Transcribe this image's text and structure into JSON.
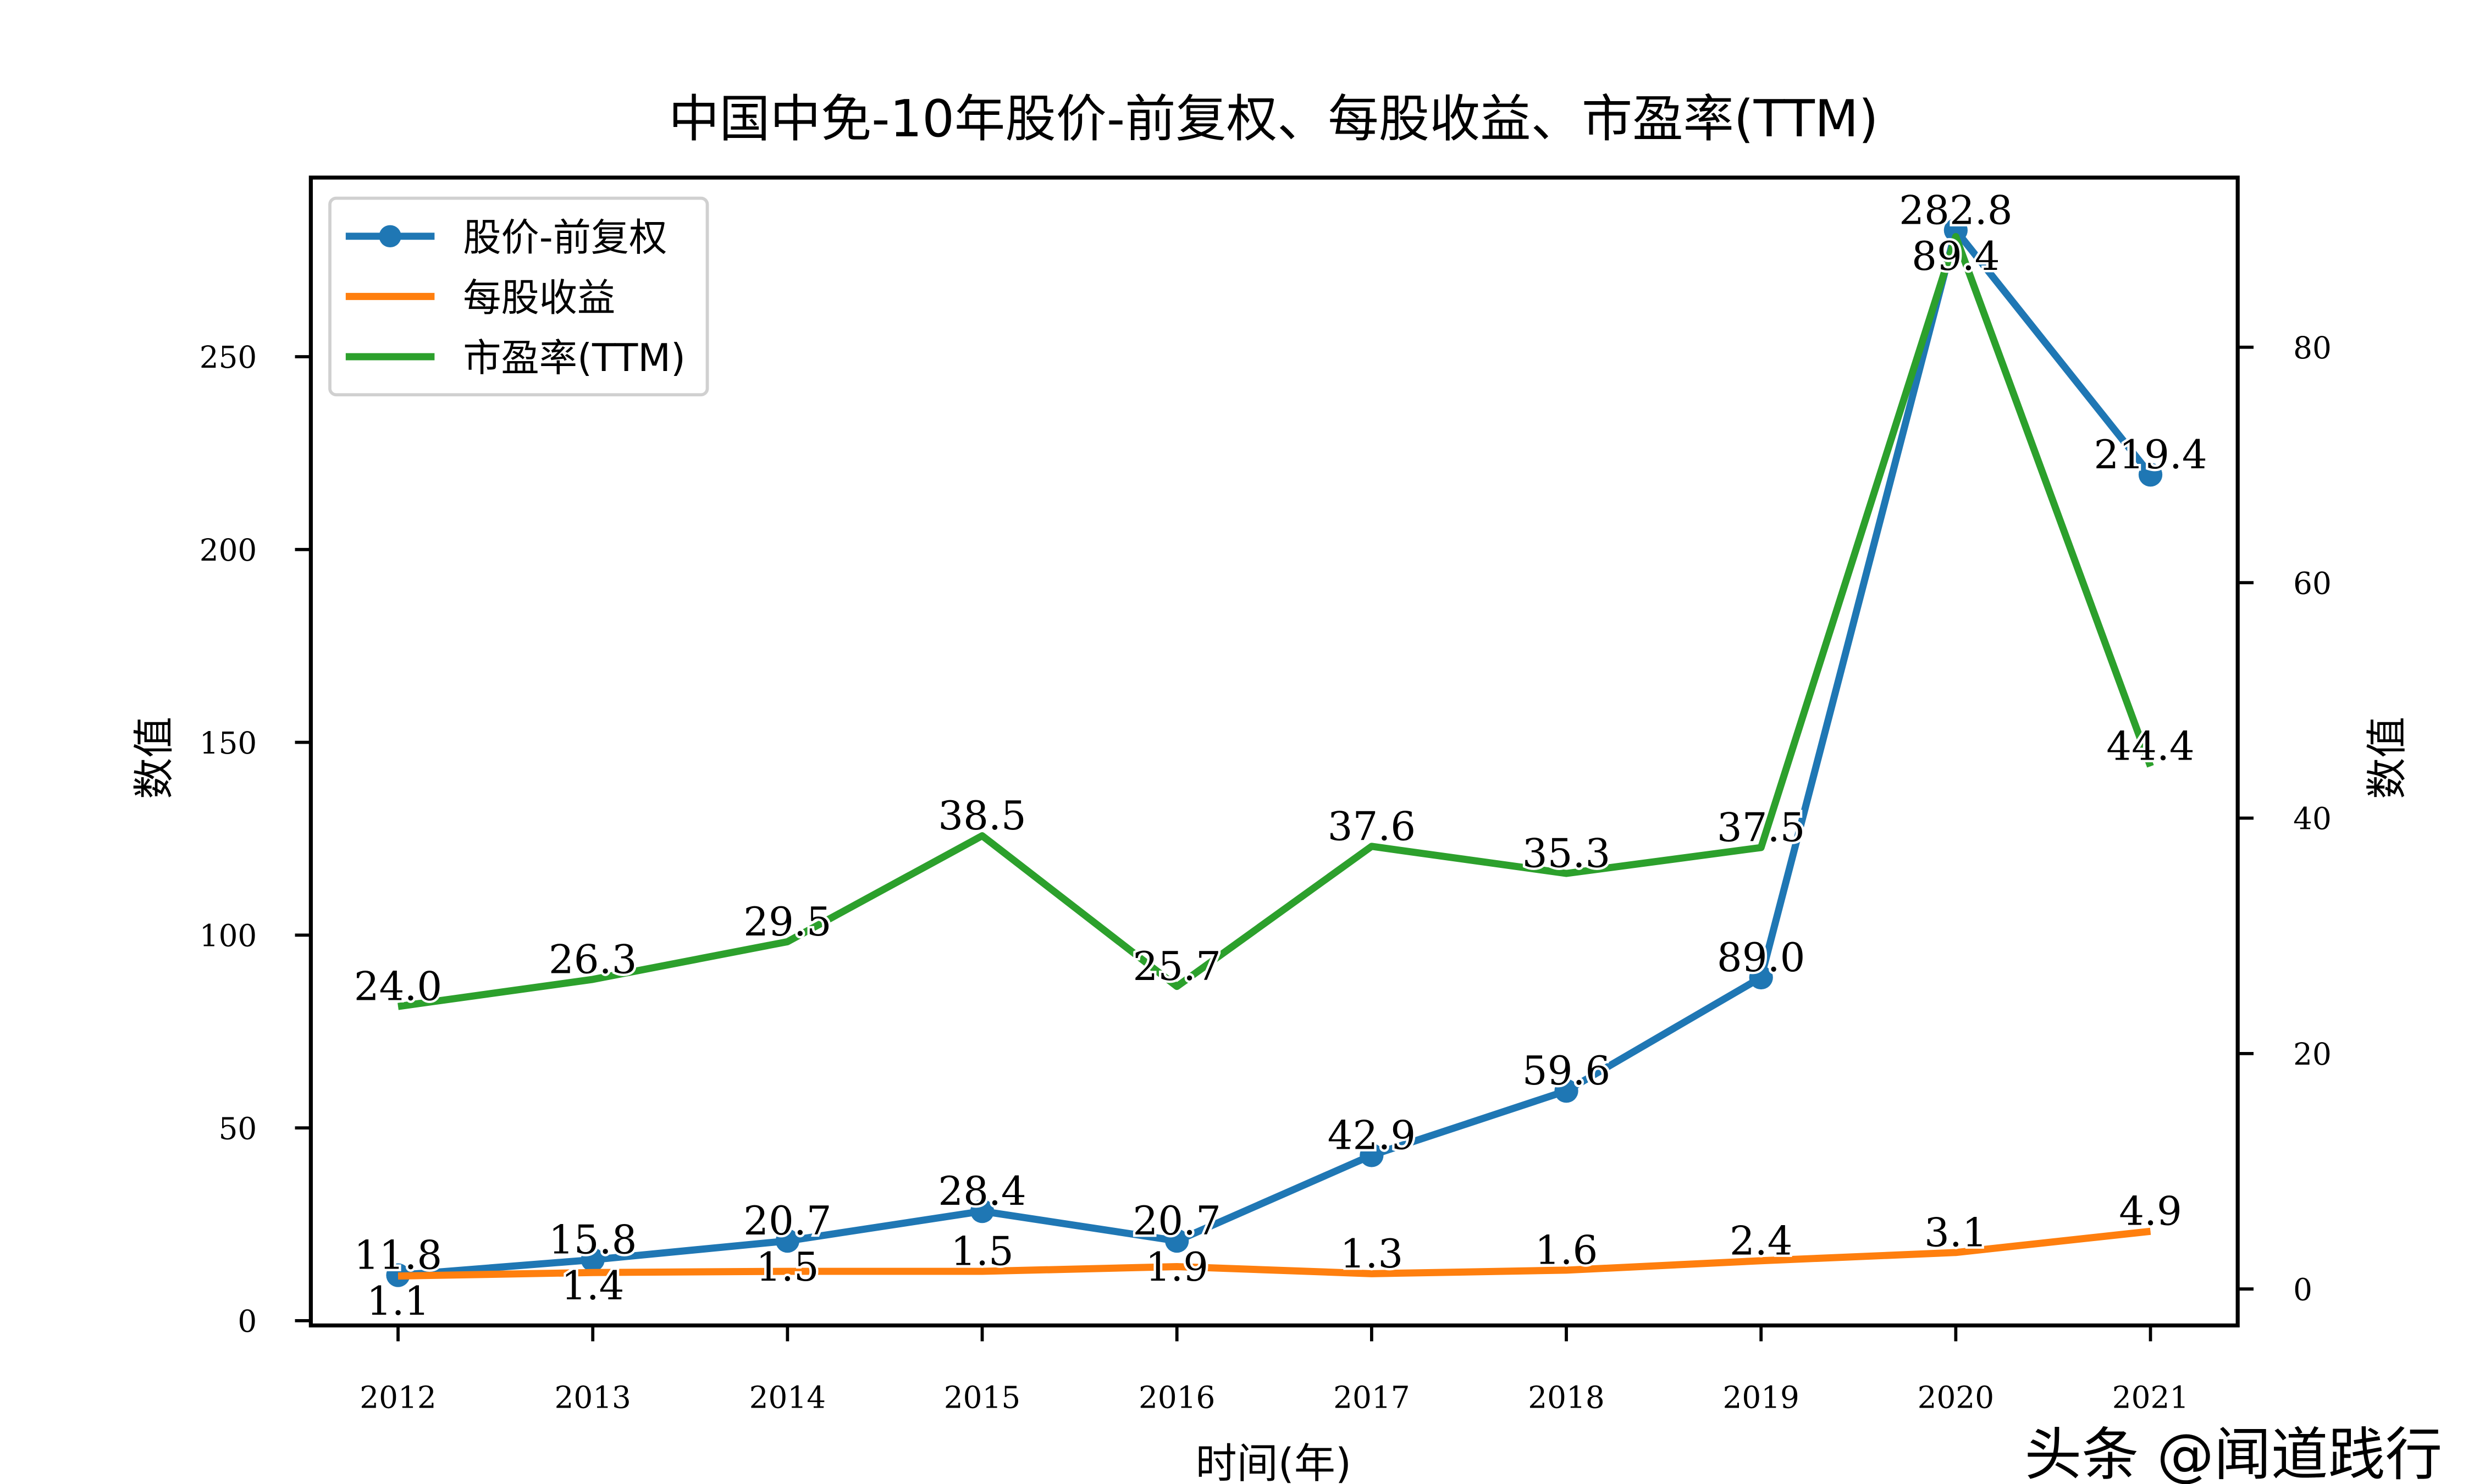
{
  "chart_data": {
    "type": "line",
    "title": "中国中免-10年股价-前复权、每股收益、市盈率(TTM)",
    "xlabel": "时间(年)",
    "ylabel_left": "数值",
    "ylabel_right": "数值",
    "categories": [
      "2012",
      "2013",
      "2014",
      "2015",
      "2016",
      "2017",
      "2018",
      "2019",
      "2020",
      "2021"
    ],
    "ylim_left": [
      0,
      290
    ],
    "yticks_left": [
      0,
      50,
      100,
      150,
      200,
      250
    ],
    "ylim_right": [
      0,
      97
    ],
    "yticks_right": [
      0,
      20,
      40,
      60,
      80
    ],
    "grid": false,
    "legend_position": "top-left",
    "series": [
      {
        "name": "股价-前复权",
        "axis": "left",
        "color": "#1f77b4",
        "marker": "circle",
        "values": [
          11.8,
          15.8,
          20.7,
          28.4,
          20.7,
          42.9,
          59.6,
          89.0,
          282.8,
          219.4
        ]
      },
      {
        "name": "每股收益",
        "axis": "right",
        "color": "#ff7f0e",
        "marker": "none",
        "values": [
          1.1,
          1.4,
          1.5,
          1.5,
          1.9,
          1.3,
          1.6,
          2.4,
          3.1,
          4.9
        ]
      },
      {
        "name": "市盈率(TTM)",
        "axis": "right",
        "color": "#2ca02c",
        "marker": "none",
        "values": [
          24.0,
          26.3,
          29.5,
          38.5,
          25.7,
          37.6,
          35.3,
          37.5,
          89.4,
          44.4
        ]
      }
    ]
  },
  "watermark": "头条 @闻道践行"
}
